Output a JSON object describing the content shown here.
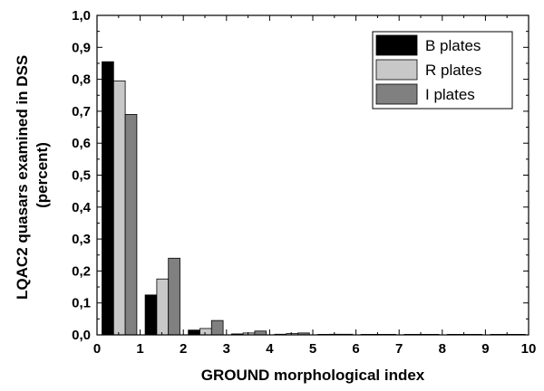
{
  "chart_data": {
    "type": "bar",
    "xlabel": "GROUND morphological index",
    "ylabel_lines": [
      "LQAC2 quasars examined in DSS",
      "(percent)"
    ],
    "xlim": [
      0,
      10
    ],
    "ylim": [
      0,
      1.0
    ],
    "x_ticks": [
      0,
      1,
      2,
      3,
      4,
      5,
      6,
      7,
      8,
      9,
      10
    ],
    "x_tick_labels": [
      "0",
      "1",
      "2",
      "3",
      "4",
      "5",
      "6",
      "7",
      "8",
      "9",
      "10"
    ],
    "y_ticks": [
      0,
      0.1,
      0.2,
      0.3,
      0.4,
      0.5,
      0.6,
      0.7,
      0.8,
      0.9,
      1.0
    ],
    "y_tick_labels": [
      "0,0",
      "0,1",
      "0,2",
      "0,3",
      "0,4",
      "0,5",
      "0,6",
      "0,7",
      "0,8",
      "0,9",
      "1,0"
    ],
    "categories": [
      0,
      1,
      2,
      3,
      4,
      5,
      6,
      7,
      8,
      9
    ],
    "series": [
      {
        "name": "B plates",
        "color": "#000000",
        "values": [
          0.855,
          0.125,
          0.015,
          0.003,
          0.002,
          0.001,
          0.001,
          0.0005,
          0.0005,
          0.0005
        ]
      },
      {
        "name": "R plates",
        "color": "#c8c8c8",
        "values": [
          0.795,
          0.175,
          0.02,
          0.006,
          0.004,
          0.002,
          0.001,
          0.0005,
          0.0005,
          0.0005
        ]
      },
      {
        "name": "I plates",
        "color": "#808080",
        "values": [
          0.69,
          0.24,
          0.045,
          0.012,
          0.006,
          0.002,
          0.001,
          0.0005,
          0.0005,
          0.0005
        ]
      }
    ],
    "legend_position": "top-right",
    "grid": false
  }
}
